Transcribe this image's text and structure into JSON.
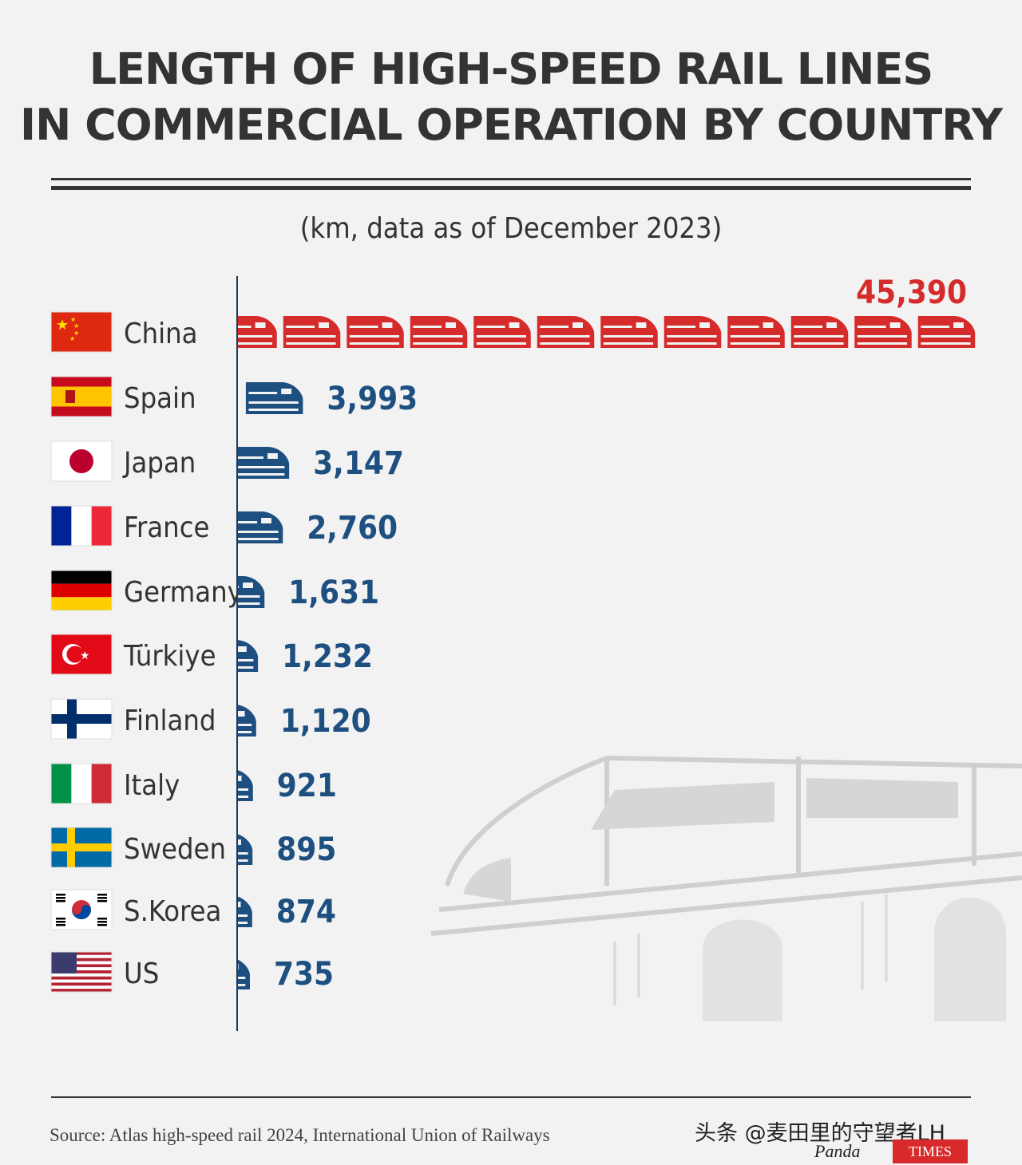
{
  "title_line1": "LENGTH OF HIGH-SPEED RAIL LINES",
  "title_line2": "IN COMMERCIAL OPERATION BY COUNTRY",
  "subtitle": "(km, data as of December 2023)",
  "source": "Source: Atlas high-speed rail 2024, International Union of Railways",
  "watermark": "头条 @麦田里的守望者LH",
  "logo_panda": "Panda",
  "logo_times": "TIMES",
  "colors": {
    "china": "#d62b2b",
    "others": "#1d4f80",
    "text": "#333333"
  },
  "chart_data": {
    "type": "bar",
    "title": "LENGTH OF HIGH-SPEED RAIL LINES IN COMMERCIAL OPERATION BY COUNTRY",
    "subtitle": "(km, data as of December 2023)",
    "unit": "km",
    "categories": [
      "China",
      "Spain",
      "Japan",
      "France",
      "Germany",
      "Türkiye",
      "Finland",
      "Italy",
      "Sweden",
      "S.Korea",
      "US"
    ],
    "values": [
      45390,
      3993,
      3147,
      2760,
      1631,
      1232,
      1120,
      921,
      895,
      874,
      735
    ],
    "value_labels": [
      "45,390",
      "3,993",
      "3,147",
      "2,760",
      "1,631",
      "1,232",
      "1,120",
      "921",
      "895",
      "874",
      "735"
    ],
    "flags": [
      "china-flag",
      "spain-flag",
      "japan-flag",
      "france-flag",
      "germany-flag",
      "turkiye-flag",
      "finland-flag",
      "italy-flag",
      "sweden-flag",
      "south-korea-flag",
      "us-flag"
    ],
    "orientation": "horizontal",
    "mark": "train-icon",
    "grid": false
  }
}
